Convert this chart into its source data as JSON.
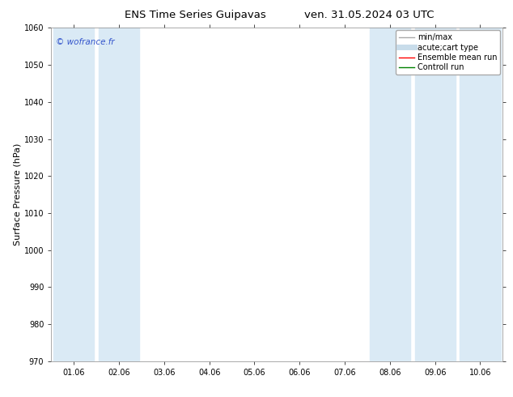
{
  "title_left": "ENS Time Series Guipavas",
  "title_right": "ven. 31.05.2024 03 UTC",
  "ylabel": "Surface Pressure (hPa)",
  "ylim": [
    970,
    1060
  ],
  "yticks": [
    970,
    980,
    990,
    1000,
    1010,
    1020,
    1030,
    1040,
    1050,
    1060
  ],
  "xlabel_dates": [
    "01.06",
    "02.06",
    "03.06",
    "04.06",
    "05.06",
    "06.06",
    "07.06",
    "08.06",
    "09.06",
    "10.06"
  ],
  "shaded_band_indices": [
    0,
    1,
    7,
    8,
    9
  ],
  "band_color": "#daeaf5",
  "copyright_text": "© wofrance.fr",
  "legend_items": [
    {
      "label": "min/max",
      "color": "#aaaaaa",
      "lw": 1.0
    },
    {
      "label": "acute;cart type",
      "color": "#c8dcea",
      "lw": 5
    },
    {
      "label": "Ensemble mean run",
      "color": "red",
      "lw": 1.0
    },
    {
      "label": "Controll run",
      "color": "green",
      "lw": 1.0
    }
  ],
  "bg_color": "#ffffff",
  "title_fontsize": 9.5,
  "tick_fontsize": 7,
  "ylabel_fontsize": 8,
  "copyright_fontsize": 7.5,
  "legend_fontsize": 7
}
